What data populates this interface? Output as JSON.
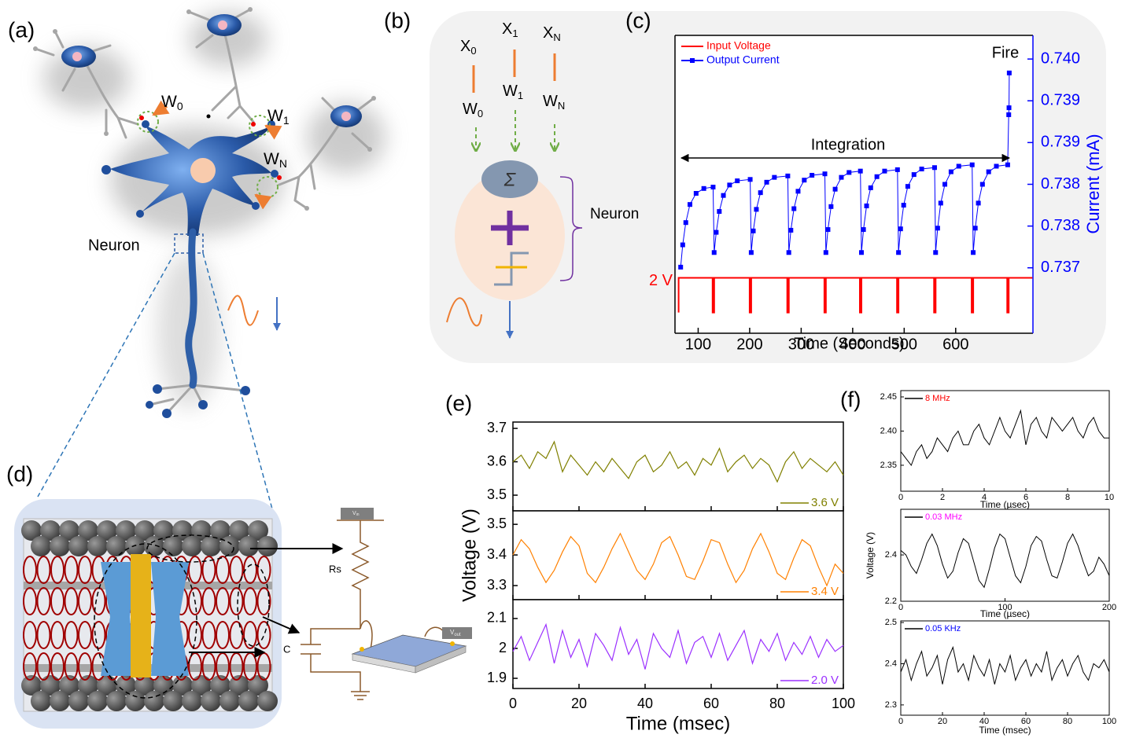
{
  "panels": {
    "a": {
      "label": "(a)",
      "weights": [
        {
          "base": "W",
          "sub": "0"
        },
        {
          "base": "W",
          "sub": "1"
        },
        {
          "base": "W",
          "sub": "N"
        }
      ],
      "neuron_label": "Neuron"
    },
    "b": {
      "label": "(b)",
      "inputs": [
        {
          "base": "X",
          "sub": "0"
        },
        {
          "base": "X",
          "sub": "1"
        },
        {
          "base": "X",
          "sub": "N"
        }
      ],
      "weights": [
        {
          "base": "W",
          "sub": "0"
        },
        {
          "base": "W",
          "sub": "1"
        },
        {
          "base": "W",
          "sub": "N"
        }
      ],
      "sum_symbol": "Σ",
      "neuron_label": "Neuron"
    },
    "c": {
      "label": "(c)"
    },
    "d": {
      "label": "(d)",
      "resistor": "Rs",
      "capacitor": "C",
      "vin": {
        "base": "V",
        "sub": "in"
      },
      "vout": {
        "base": "V",
        "sub": "out"
      }
    },
    "e": {
      "label": "(e)"
    },
    "f": {
      "label": "(f)"
    }
  },
  "chart_data": [
    {
      "type": "line",
      "xlabel": "Time (Seconds)",
      "y2label": "Current (mA)",
      "legend": "upper left",
      "xlim": [
        55,
        750
      ],
      "xticks": [
        100,
        200,
        300,
        400,
        500,
        600
      ],
      "ylim": [
        -1.2,
        16
      ],
      "y2lim": [
        0.73606,
        0.74034
      ],
      "y2ticks": [
        0.737,
        {
          "value": 0.7376,
          "label": "0.738"
        },
        {
          "value": 0.7382,
          "label": "0.738"
        },
        {
          "value": 0.7388,
          "label": "0.739"
        },
        {
          "value": 0.7394,
          "label": "0.739"
        },
        {
          "value": 0.74,
          "label": "0.740"
        }
      ],
      "annotations": [
        {
          "text": "Fire"
        },
        {
          "text": "Integration"
        },
        {
          "text": "2 V",
          "y": 2
        }
      ],
      "series": [
        {
          "name": "Input Voltage",
          "color": "#ff0000",
          "x": [
            62,
            62,
            128,
            128,
            131,
            131,
            200,
            200,
            203,
            203,
            273,
            273,
            276,
            276,
            345,
            345,
            348,
            348,
            414,
            414,
            417,
            417,
            486,
            486,
            489,
            489,
            558,
            558,
            561,
            561,
            631,
            631,
            634,
            634,
            700,
            700,
            703,
            703,
            749
          ],
          "values": [
            0,
            2,
            2,
            0,
            0,
            2,
            2,
            0,
            0,
            2,
            2,
            0,
            0,
            2,
            2,
            0,
            0,
            2,
            2,
            0,
            0,
            2,
            2,
            0,
            0,
            2,
            2,
            0,
            0,
            2,
            2,
            0,
            0,
            2,
            2,
            0,
            0,
            2,
            2
          ]
        },
        {
          "name": "Output Current",
          "color": "#0000ff",
          "axis": "y2",
          "marker": "square",
          "x": [
            66,
            70,
            76,
            84,
            96,
            111,
            129,
            131,
            135,
            141,
            149,
            161,
            176,
            201,
            203,
            207,
            213,
            221,
            233,
            248,
            274,
            276,
            280,
            286,
            294,
            306,
            321,
            346,
            348,
            352,
            358,
            366,
            378,
            393,
            415,
            417,
            421,
            427,
            435,
            447,
            462,
            487,
            489,
            493,
            499,
            507,
            519,
            534,
            559,
            561,
            565,
            571,
            579,
            591,
            606,
            632,
            634,
            638,
            644,
            652,
            664,
            679,
            701,
            703,
            703.5,
            704
          ],
          "values": [
            0.73701,
            0.73733,
            0.73765,
            0.73791,
            0.73807,
            0.73814,
            0.73816,
            0.73722,
            0.73751,
            0.73781,
            0.73804,
            0.73819,
            0.73825,
            0.73827,
            0.73722,
            0.73753,
            0.73784,
            0.73808,
            0.73823,
            0.7383,
            0.73832,
            0.73722,
            0.73754,
            0.73785,
            0.7381,
            0.73826,
            0.73833,
            0.73835,
            0.73722,
            0.73755,
            0.73788,
            0.73813,
            0.7383,
            0.73837,
            0.73839,
            0.73722,
            0.73755,
            0.73789,
            0.73815,
            0.73831,
            0.73839,
            0.73841,
            0.73722,
            0.73756,
            0.7379,
            0.73817,
            0.73834,
            0.73842,
            0.73844,
            0.73722,
            0.73757,
            0.73793,
            0.7382,
            0.73838,
            0.73846,
            0.73848,
            0.73722,
            0.73757,
            0.73793,
            0.7382,
            0.73838,
            0.73846,
            0.73848,
            0.7392,
            0.7393,
            0.7398
          ]
        }
      ]
    },
    {
      "type": "line",
      "legend": "lower right",
      "xlim": [
        0,
        100
      ],
      "xticks": [
        0,
        20,
        40,
        60,
        80,
        100
      ],
      "ylim": [
        3.453,
        3.719
      ],
      "yticks": [
        3.5,
        3.6,
        3.7
      ],
      "x": [
        0,
        2.5,
        5,
        7.5,
        10,
        12.5,
        15,
        17.5,
        20,
        22.5,
        25,
        27.5,
        30,
        32.5,
        35,
        37.5,
        40,
        42.5,
        45,
        47.5,
        50,
        52.5,
        55,
        57.5,
        60,
        62.5,
        65,
        67.5,
        70,
        72.5,
        75,
        77.5,
        80,
        82.5,
        85,
        87.5,
        90,
        92.5,
        95,
        97.5,
        100
      ],
      "series": [
        {
          "name": "3.6 V",
          "color": "#808000",
          "values": [
            3.6,
            3.62,
            3.58,
            3.63,
            3.61,
            3.66,
            3.57,
            3.62,
            3.59,
            3.56,
            3.6,
            3.57,
            3.61,
            3.58,
            3.55,
            3.6,
            3.62,
            3.57,
            3.59,
            3.63,
            3.58,
            3.6,
            3.56,
            3.61,
            3.59,
            3.64,
            3.57,
            3.6,
            3.62,
            3.58,
            3.61,
            3.59,
            3.54,
            3.6,
            3.63,
            3.58,
            3.61,
            3.59,
            3.57,
            3.6,
            3.56
          ]
        }
      ]
    },
    {
      "type": "line",
      "legend": "lower right",
      "ylabel": "Voltage (V)",
      "xlim": [
        0,
        100
      ],
      "xticks": [
        0,
        20,
        40,
        60,
        80,
        100
      ],
      "ylim": [
        3.254,
        3.544
      ],
      "yticks": [
        3.3,
        3.4,
        3.5
      ],
      "x": [
        0,
        2.5,
        5,
        7.5,
        10,
        12.5,
        15,
        17.5,
        20,
        22.5,
        25,
        27.5,
        30,
        32.5,
        35,
        37.5,
        40,
        42.5,
        45,
        47.5,
        50,
        52.5,
        55,
        57.5,
        60,
        62.5,
        65,
        67.5,
        70,
        72.5,
        75,
        77.5,
        80,
        82.5,
        85,
        87.5,
        90,
        92.5,
        95,
        97.5,
        100
      ],
      "series": [
        {
          "name": "3.4 V",
          "color": "#ff8000",
          "values": [
            3.4,
            3.45,
            3.42,
            3.36,
            3.31,
            3.35,
            3.41,
            3.46,
            3.43,
            3.34,
            3.31,
            3.36,
            3.42,
            3.47,
            3.41,
            3.35,
            3.32,
            3.37,
            3.44,
            3.46,
            3.4,
            3.33,
            3.32,
            3.38,
            3.45,
            3.44,
            3.37,
            3.31,
            3.35,
            3.42,
            3.47,
            3.41,
            3.34,
            3.32,
            3.39,
            3.45,
            3.43,
            3.36,
            3.3,
            3.37,
            3.34
          ]
        }
      ]
    },
    {
      "type": "line",
      "legend": "lower right",
      "xlabel": "Time (msec)",
      "xlim": [
        0,
        100
      ],
      "xticks": [
        0,
        20,
        40,
        60,
        80,
        100
      ],
      "ylim": [
        1.866,
        2.163
      ],
      "yticks": [
        1.9,
        2.0,
        2.1
      ],
      "x": [
        0,
        2.5,
        5,
        7.5,
        10,
        12.5,
        15,
        17.5,
        20,
        22.5,
        25,
        27.5,
        30,
        32.5,
        35,
        37.5,
        40,
        42.5,
        45,
        47.5,
        50,
        52.5,
        55,
        57.5,
        60,
        62.5,
        65,
        67.5,
        70,
        72.5,
        75,
        77.5,
        80,
        82.5,
        85,
        87.5,
        90,
        92.5,
        95,
        97.5,
        100
      ],
      "series": [
        {
          "name": "2.0 V",
          "color": "#9b30ff",
          "values": [
            1.99,
            2.04,
            1.96,
            2.02,
            2.08,
            1.95,
            2.06,
            1.97,
            2.03,
            1.94,
            2.05,
            2.01,
            1.96,
            2.07,
            1.98,
            2.03,
            1.93,
            2.05,
            2.0,
            1.97,
            2.06,
            1.95,
            2.02,
            2.04,
            1.97,
            2.05,
            1.96,
            2.01,
            2.06,
            1.95,
            2.03,
            1.99,
            2.05,
            1.96,
            2.02,
            1.98,
            2.04,
            1.97,
            2.03,
            1.99,
            2.01
          ]
        }
      ]
    },
    {
      "type": "line",
      "legend": "upper left",
      "xlabel": "Time (µsec)",
      "xlim": [
        0,
        10
      ],
      "xticks": [
        0,
        2,
        4,
        6,
        8,
        10
      ],
      "ylim": [
        2.312,
        2.4592
      ],
      "yticks": [
        2.35,
        {
          "value": 2.4,
          "label": "2.40"
        },
        2.45
      ],
      "x": [
        0,
        0.25,
        0.5,
        0.75,
        1,
        1.25,
        1.5,
        1.75,
        2,
        2.25,
        2.5,
        2.75,
        3,
        3.25,
        3.5,
        3.75,
        4,
        4.25,
        4.5,
        4.75,
        5,
        5.25,
        5.5,
        5.75,
        6,
        6.25,
        6.5,
        6.75,
        7,
        7.25,
        7.5,
        7.75,
        8,
        8.25,
        8.5,
        8.75,
        9,
        9.25,
        9.5,
        9.75,
        10
      ],
      "series": [
        {
          "name": "8 MHz",
          "color": "#000000",
          "label_color": "#ff0000",
          "values": [
            2.37,
            2.36,
            2.35,
            2.37,
            2.38,
            2.36,
            2.37,
            2.39,
            2.38,
            2.37,
            2.39,
            2.4,
            2.38,
            2.38,
            2.4,
            2.41,
            2.39,
            2.38,
            2.4,
            2.42,
            2.4,
            2.39,
            2.41,
            2.43,
            2.38,
            2.41,
            2.42,
            2.4,
            2.39,
            2.42,
            2.41,
            2.4,
            2.41,
            2.42,
            2.4,
            2.39,
            2.41,
            2.42,
            2.4,
            2.39,
            2.39
          ]
        }
      ]
    },
    {
      "type": "line",
      "legend": "upper left",
      "xlabel": "Time (µsec)",
      "ylabel": "Voltage (V)",
      "xlim": [
        0,
        200
      ],
      "xticks": [
        0,
        100,
        200
      ],
      "ylim": [
        2.2,
        2.597
      ],
      "yticks": [
        2.2,
        2.4
      ],
      "x": [
        0,
        5,
        10,
        15,
        20,
        25,
        30,
        35,
        40,
        45,
        50,
        55,
        60,
        65,
        70,
        75,
        80,
        85,
        90,
        95,
        100,
        105,
        110,
        115,
        120,
        125,
        130,
        135,
        140,
        145,
        150,
        155,
        160,
        165,
        170,
        175,
        180,
        185,
        190,
        195,
        200
      ],
      "series": [
        {
          "name": "0.03 MHz",
          "color": "#000000",
          "label_color": "#ff00ff",
          "values": [
            2.42,
            2.4,
            2.35,
            2.32,
            2.38,
            2.45,
            2.49,
            2.44,
            2.36,
            2.3,
            2.33,
            2.41,
            2.47,
            2.45,
            2.37,
            2.29,
            2.26,
            2.34,
            2.43,
            2.49,
            2.47,
            2.39,
            2.31,
            2.28,
            2.35,
            2.44,
            2.48,
            2.46,
            2.38,
            2.31,
            2.3,
            2.37,
            2.45,
            2.49,
            2.44,
            2.37,
            2.31,
            2.33,
            2.39,
            2.36,
            2.31
          ]
        }
      ]
    },
    {
      "type": "line",
      "legend": "upper left",
      "xlabel": "Time (msec)",
      "xlim": [
        0,
        100
      ],
      "xticks": [
        0,
        20,
        40,
        60,
        80,
        100
      ],
      "ylim": [
        2.275,
        2.504
      ],
      "yticks": [
        2.3,
        2.4,
        2.5
      ],
      "x": [
        0,
        2.5,
        5,
        7.5,
        10,
        12.5,
        15,
        17.5,
        20,
        22.5,
        25,
        27.5,
        30,
        32.5,
        35,
        37.5,
        40,
        42.5,
        45,
        47.5,
        50,
        52.5,
        55,
        57.5,
        60,
        62.5,
        65,
        67.5,
        70,
        72.5,
        75,
        77.5,
        80,
        82.5,
        85,
        87.5,
        90,
        92.5,
        95,
        97.5,
        100
      ],
      "series": [
        {
          "name": "0.05 KHz",
          "color": "#000000",
          "label_color": "#0000ff",
          "values": [
            2.38,
            2.41,
            2.36,
            2.4,
            2.43,
            2.37,
            2.39,
            2.42,
            2.35,
            2.41,
            2.44,
            2.38,
            2.4,
            2.36,
            2.42,
            2.39,
            2.37,
            2.41,
            2.35,
            2.4,
            2.38,
            2.42,
            2.36,
            2.39,
            2.41,
            2.37,
            2.4,
            2.38,
            2.43,
            2.36,
            2.39,
            2.41,
            2.37,
            2.4,
            2.42,
            2.38,
            2.36,
            2.4,
            2.39,
            2.41,
            2.38
          ]
        }
      ]
    }
  ]
}
